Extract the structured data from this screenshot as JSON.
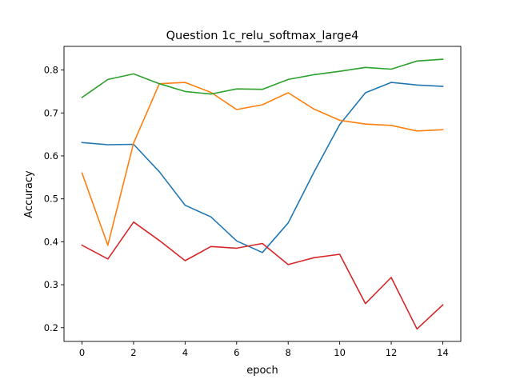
{
  "chart_data": {
    "type": "line",
    "title": "Question 1c_relu_softmax_large4",
    "xlabel": "epoch",
    "ylabel": "Accuracy",
    "x": [
      0,
      1,
      2,
      3,
      4,
      5,
      6,
      7,
      8,
      9,
      10,
      11,
      12,
      13,
      14
    ],
    "xlim": [
      -0.7,
      14.7
    ],
    "ylim": [
      0.168,
      0.855
    ],
    "xticks": [
      0,
      2,
      4,
      6,
      8,
      10,
      12,
      14
    ],
    "yticks": [
      0.2,
      0.3,
      0.4,
      0.5,
      0.6,
      0.7,
      0.8
    ],
    "ytick_labels": [
      "0.2",
      "0.3",
      "0.4",
      "0.5",
      "0.6",
      "0.7",
      "0.8"
    ],
    "grid": false,
    "legend": "none",
    "series": [
      {
        "color": "#1f77b4",
        "values": [
          0.631,
          0.626,
          0.627,
          0.563,
          0.485,
          0.458,
          0.402,
          0.375,
          0.444,
          0.562,
          0.673,
          0.747,
          0.771,
          0.765,
          0.762
        ]
      },
      {
        "color": "#ff7f0e",
        "values": [
          0.56,
          0.392,
          0.63,
          0.768,
          0.771,
          0.748,
          0.708,
          0.719,
          0.747,
          0.709,
          0.683,
          0.674,
          0.671,
          0.658,
          0.661
        ]
      },
      {
        "color": "#2ca02c",
        "values": [
          0.736,
          0.778,
          0.791,
          0.768,
          0.75,
          0.744,
          0.756,
          0.755,
          0.778,
          0.789,
          0.797,
          0.806,
          0.802,
          0.821,
          0.825
        ]
      },
      {
        "color": "#d62728",
        "values": [
          0.392,
          0.36,
          0.446,
          0.403,
          0.356,
          0.389,
          0.385,
          0.396,
          0.347,
          0.363,
          0.371,
          0.256,
          0.317,
          0.197,
          0.253
        ]
      }
    ]
  }
}
